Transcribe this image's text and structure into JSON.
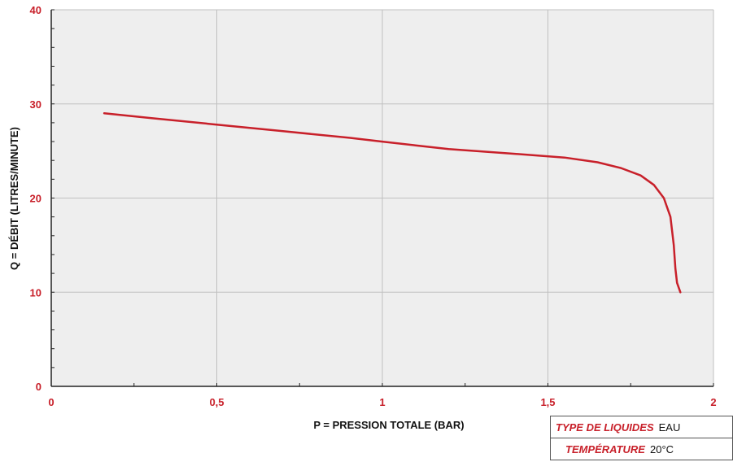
{
  "chart_data": {
    "type": "line",
    "xlabel": "P = PRESSION TOTALE  (BAR)",
    "ylabel": "Q = DÉBIT (LITRES/MINUTE)",
    "xlim": [
      0,
      2
    ],
    "ylim": [
      0,
      40
    ],
    "x_ticks": [
      "0",
      "0,5",
      "1",
      "1,5",
      "2"
    ],
    "y_ticks": [
      "0",
      "10",
      "20",
      "30",
      "40"
    ],
    "grid": true,
    "series": [
      {
        "color": "#c8202a",
        "points": [
          [
            0.16,
            29.0
          ],
          [
            0.3,
            28.5
          ],
          [
            0.5,
            27.8
          ],
          [
            0.7,
            27.1
          ],
          [
            0.9,
            26.4
          ],
          [
            1.0,
            26.0
          ],
          [
            1.1,
            25.6
          ],
          [
            1.2,
            25.2
          ],
          [
            1.4,
            24.7
          ],
          [
            1.55,
            24.3
          ],
          [
            1.65,
            23.8
          ],
          [
            1.72,
            23.2
          ],
          [
            1.78,
            22.4
          ],
          [
            1.82,
            21.4
          ],
          [
            1.85,
            20.0
          ],
          [
            1.87,
            18.0
          ],
          [
            1.88,
            15.0
          ],
          [
            1.885,
            12.5
          ],
          [
            1.89,
            11.0
          ],
          [
            1.9,
            10.0
          ]
        ]
      }
    ]
  },
  "colors": {
    "accent": "#c8202a",
    "plot_background": "#eeeeee",
    "grid": "#c0c0c0"
  },
  "info_table": {
    "rows": [
      {
        "label": "TYPE DE LIQUIDES",
        "value": "EAU"
      },
      {
        "label": "TEMPÉRATURE",
        "value": "20°C"
      }
    ]
  }
}
